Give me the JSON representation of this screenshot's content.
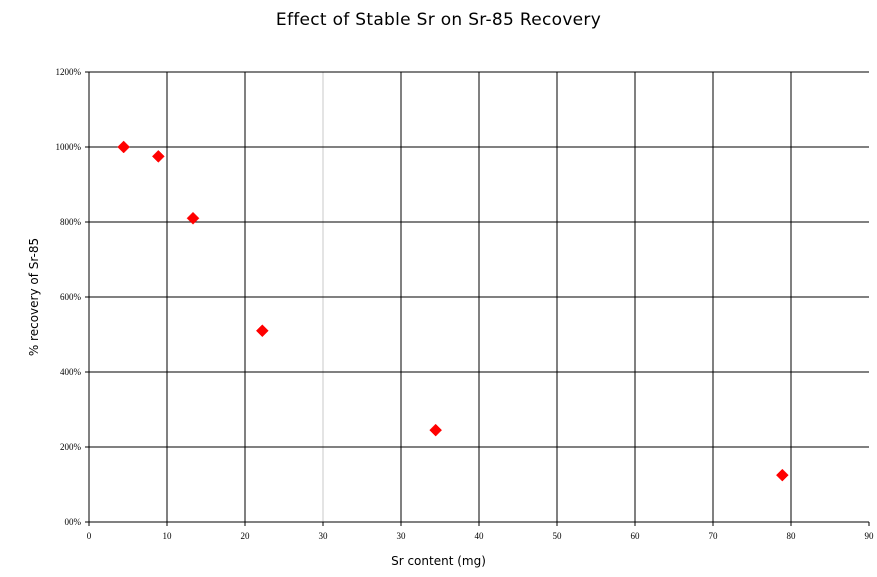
{
  "chart_data": {
    "type": "scatter",
    "title": "Effect of Stable Sr on Sr-85 Recovery",
    "xlabel": "Sr content (mg)",
    "ylabel": "% recovery of Sr-85",
    "xlim": [
      0,
      90
    ],
    "ylim": [
      0,
      1200
    ],
    "x_ticks": [
      "0",
      "10",
      "20",
      "30",
      "30",
      "40",
      "50",
      "60",
      "70",
      "80",
      "90"
    ],
    "y_ticks": [
      "00%",
      "200%",
      "400%",
      "600%",
      "800%",
      "1000%",
      "1200%"
    ],
    "grid": true,
    "legend": "none",
    "marker": "diamond",
    "marker_color": "#ff0000",
    "series": [
      {
        "points": [
          {
            "x": 4,
            "y": 1000
          },
          {
            "x": 8,
            "y": 975
          },
          {
            "x": 12,
            "y": 810
          },
          {
            "x": 20,
            "y": 510
          },
          {
            "x": 40,
            "y": 245
          },
          {
            "x": 80,
            "y": 125
          }
        ]
      }
    ]
  }
}
